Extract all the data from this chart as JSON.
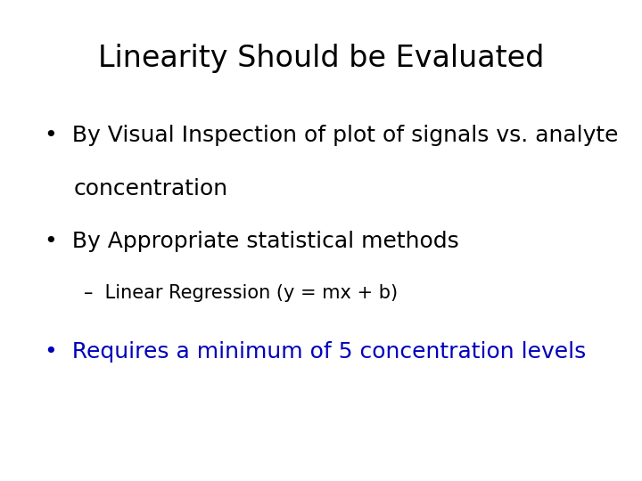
{
  "title": "Linearity Should be Evaluated",
  "title_fontsize": 24,
  "title_color": "#000000",
  "background_color": "#ffffff",
  "bullet1_line1": "By Visual Inspection of plot of signals vs. analyte",
  "bullet1_line2": "concentration",
  "bullet2": "By Appropriate statistical methods",
  "sub_bullet": "–  Linear Regression (y = mx + b)",
  "bullet3": "Requires a minimum of 5 concentration levels",
  "bullet_color": "#000000",
  "bullet3_color": "#0000bb",
  "bullet_fontsize": 18,
  "sub_bullet_fontsize": 15,
  "font_family": "DejaVu Sans"
}
